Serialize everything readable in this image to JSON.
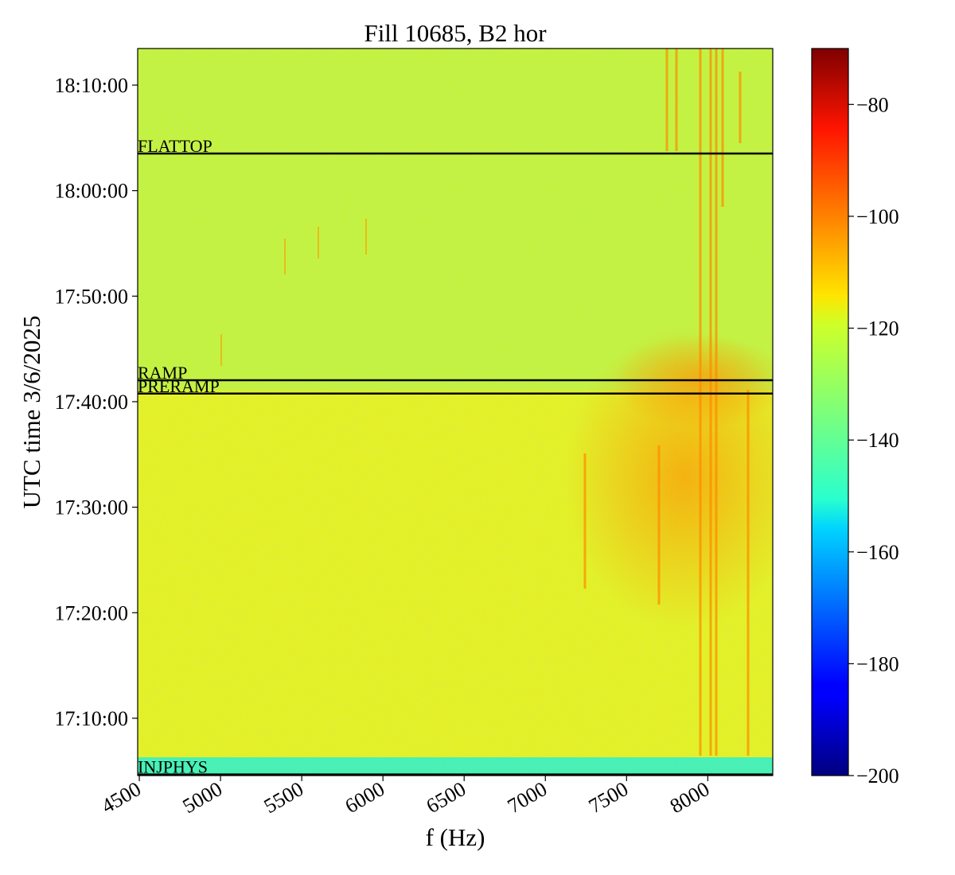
{
  "chart_data": {
    "type": "spectrogram",
    "title": "Fill 10685, B2 hor",
    "xlabel": "f (Hz)",
    "ylabel": "UTC time 3/6/2025",
    "xlim": [
      4490,
      8400
    ],
    "xticks": [
      4500,
      5000,
      5500,
      6000,
      6500,
      7000,
      7500,
      8000
    ],
    "ylim": [
      "17:04:34",
      "18:13:28"
    ],
    "yticks": [
      "17:10:00",
      "17:20:00",
      "17:30:00",
      "17:40:00",
      "17:50:00",
      "18:00:00",
      "18:10:00"
    ],
    "colormap": "jet",
    "clim": [
      -200,
      -70
    ],
    "cticks": [
      {
        "value": -200,
        "label": "−200"
      },
      {
        "value": -180,
        "label": "−180"
      },
      {
        "value": -160,
        "label": "−160"
      },
      {
        "value": -140,
        "label": "−140"
      },
      {
        "value": -120,
        "label": "−120"
      },
      {
        "value": -100,
        "label": "−100"
      },
      {
        "value": -80,
        "label": "−80"
      }
    ],
    "markers": [
      {
        "label": "FLATTOP",
        "time": "18:03:31"
      },
      {
        "label": "RAMP",
        "time": "17:42:02"
      },
      {
        "label": "PRERAMP",
        "time": "17:40:46"
      },
      {
        "label": "INJPHYS",
        "time": "17:04:40"
      }
    ]
  }
}
